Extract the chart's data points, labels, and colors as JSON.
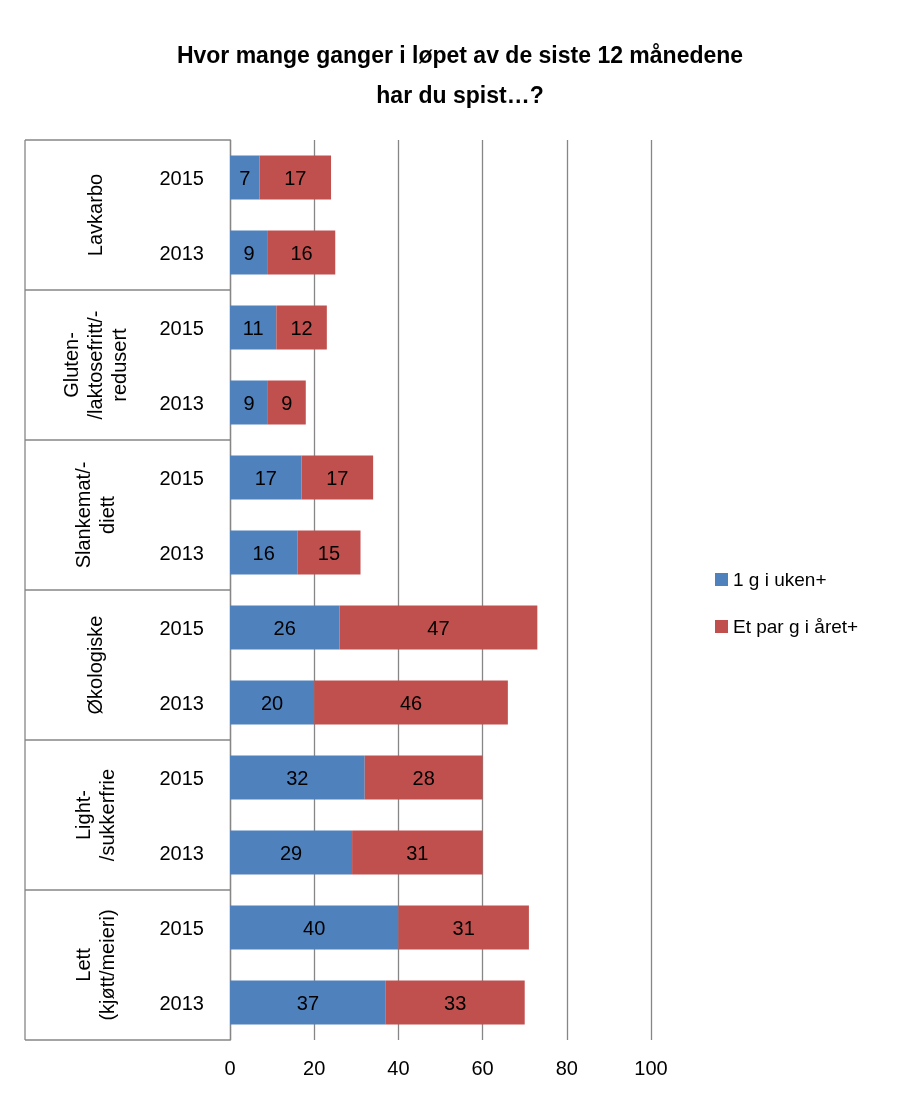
{
  "chart_data": {
    "type": "bar",
    "orientation": "horizontal",
    "stacked": true,
    "title": "Hvor mange ganger i løpet av de siste 12 månedene\nhar du spist…?",
    "categories": [
      "2015",
      "2013",
      "2015",
      "2013",
      "2015",
      "2013",
      "2015",
      "2013",
      "2015",
      "2013",
      "2015",
      "2013"
    ],
    "series": [
      {
        "name": "1 g i uken+",
        "color": "#4f81bd",
        "values": [
          7,
          9,
          11,
          9,
          17,
          16,
          26,
          20,
          32,
          29,
          40,
          37
        ]
      },
      {
        "name": "Et par g i året+",
        "color": "#c0504d",
        "values": [
          17,
          16,
          12,
          9,
          17,
          15,
          47,
          46,
          28,
          31,
          31,
          33
        ]
      }
    ],
    "annotations": [
      "Lavkarbo",
      "Gluten-\n/laktosefritt/-\nredusert",
      "Slankemat/-\ndiett",
      "Økologiske",
      "Light-\n/sukkerfrie",
      "Lett\n(kjøtt/meieri)"
    ],
    "xlim": [
      0,
      100
    ],
    "xticks": [
      0,
      20,
      40,
      60,
      80,
      100
    ],
    "grid": "x",
    "legend": "right",
    "data_labels": true
  }
}
